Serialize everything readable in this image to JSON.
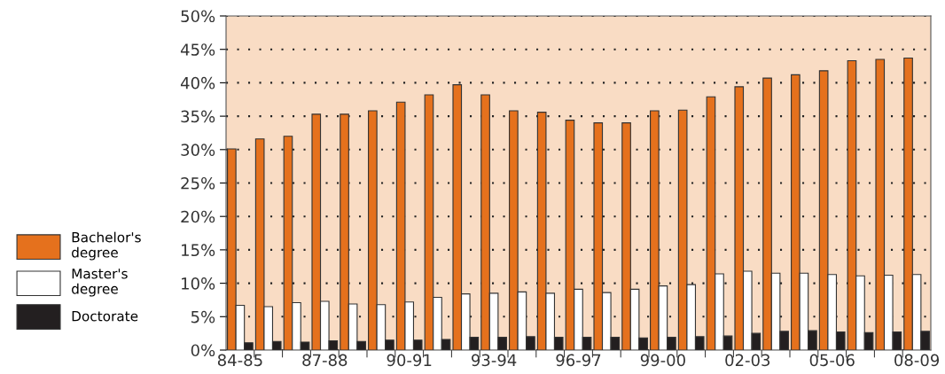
{
  "chart_data": {
    "type": "bar",
    "categories": [
      "84-85",
      null,
      null,
      "87-88",
      null,
      null,
      "90-91",
      null,
      null,
      "93-94",
      null,
      null,
      "96-97",
      null,
      null,
      "99-00",
      null,
      null,
      "02-03",
      null,
      null,
      "05-06",
      null,
      null,
      "08-09"
    ],
    "series": [
      {
        "name": "Bachelor's degree",
        "color": "#e5711d",
        "values": [
          30.1,
          31.6,
          32.0,
          35.3,
          35.3,
          35.8,
          37.1,
          38.2,
          39.7,
          38.2,
          35.8,
          35.6,
          34.4,
          34.0,
          34.0,
          35.8,
          35.9,
          37.9,
          39.4,
          40.7,
          41.2,
          41.8,
          43.3,
          43.5,
          43.7
        ]
      },
      {
        "name": "Master's degree",
        "color": "#ffffff",
        "values": [
          6.7,
          6.5,
          7.1,
          7.3,
          6.9,
          6.8,
          7.2,
          7.9,
          8.4,
          8.5,
          8.7,
          8.5,
          9.1,
          8.6,
          9.1,
          9.6,
          9.8,
          11.4,
          11.8,
          11.5,
          11.5,
          11.3,
          11.1,
          11.2,
          11.3
        ]
      },
      {
        "name": "Doctorate",
        "color": "#231f20",
        "values": [
          1.1,
          1.3,
          1.2,
          1.4,
          1.3,
          1.5,
          1.5,
          1.6,
          1.9,
          1.9,
          2.0,
          1.9,
          1.9,
          1.9,
          1.8,
          1.9,
          2.0,
          2.1,
          2.5,
          2.8,
          2.9,
          2.7,
          2.6,
          2.7,
          2.8
        ]
      }
    ],
    "ylim": [
      0,
      50
    ],
    "yticks": [
      {
        "value": 0,
        "label": "0%"
      },
      {
        "value": 5,
        "label": "5%"
      },
      {
        "value": 10,
        "label": "10%"
      },
      {
        "value": 15,
        "label": "15%"
      },
      {
        "value": 20,
        "label": "20%"
      },
      {
        "value": 25,
        "label": "25%"
      },
      {
        "value": 30,
        "label": "30%"
      },
      {
        "value": 35,
        "label": "35%"
      },
      {
        "value": 40,
        "label": "40%"
      },
      {
        "value": 45,
        "label": "45%"
      },
      {
        "value": 50,
        "label": "50%"
      }
    ],
    "grid": "y",
    "legend": "left"
  }
}
